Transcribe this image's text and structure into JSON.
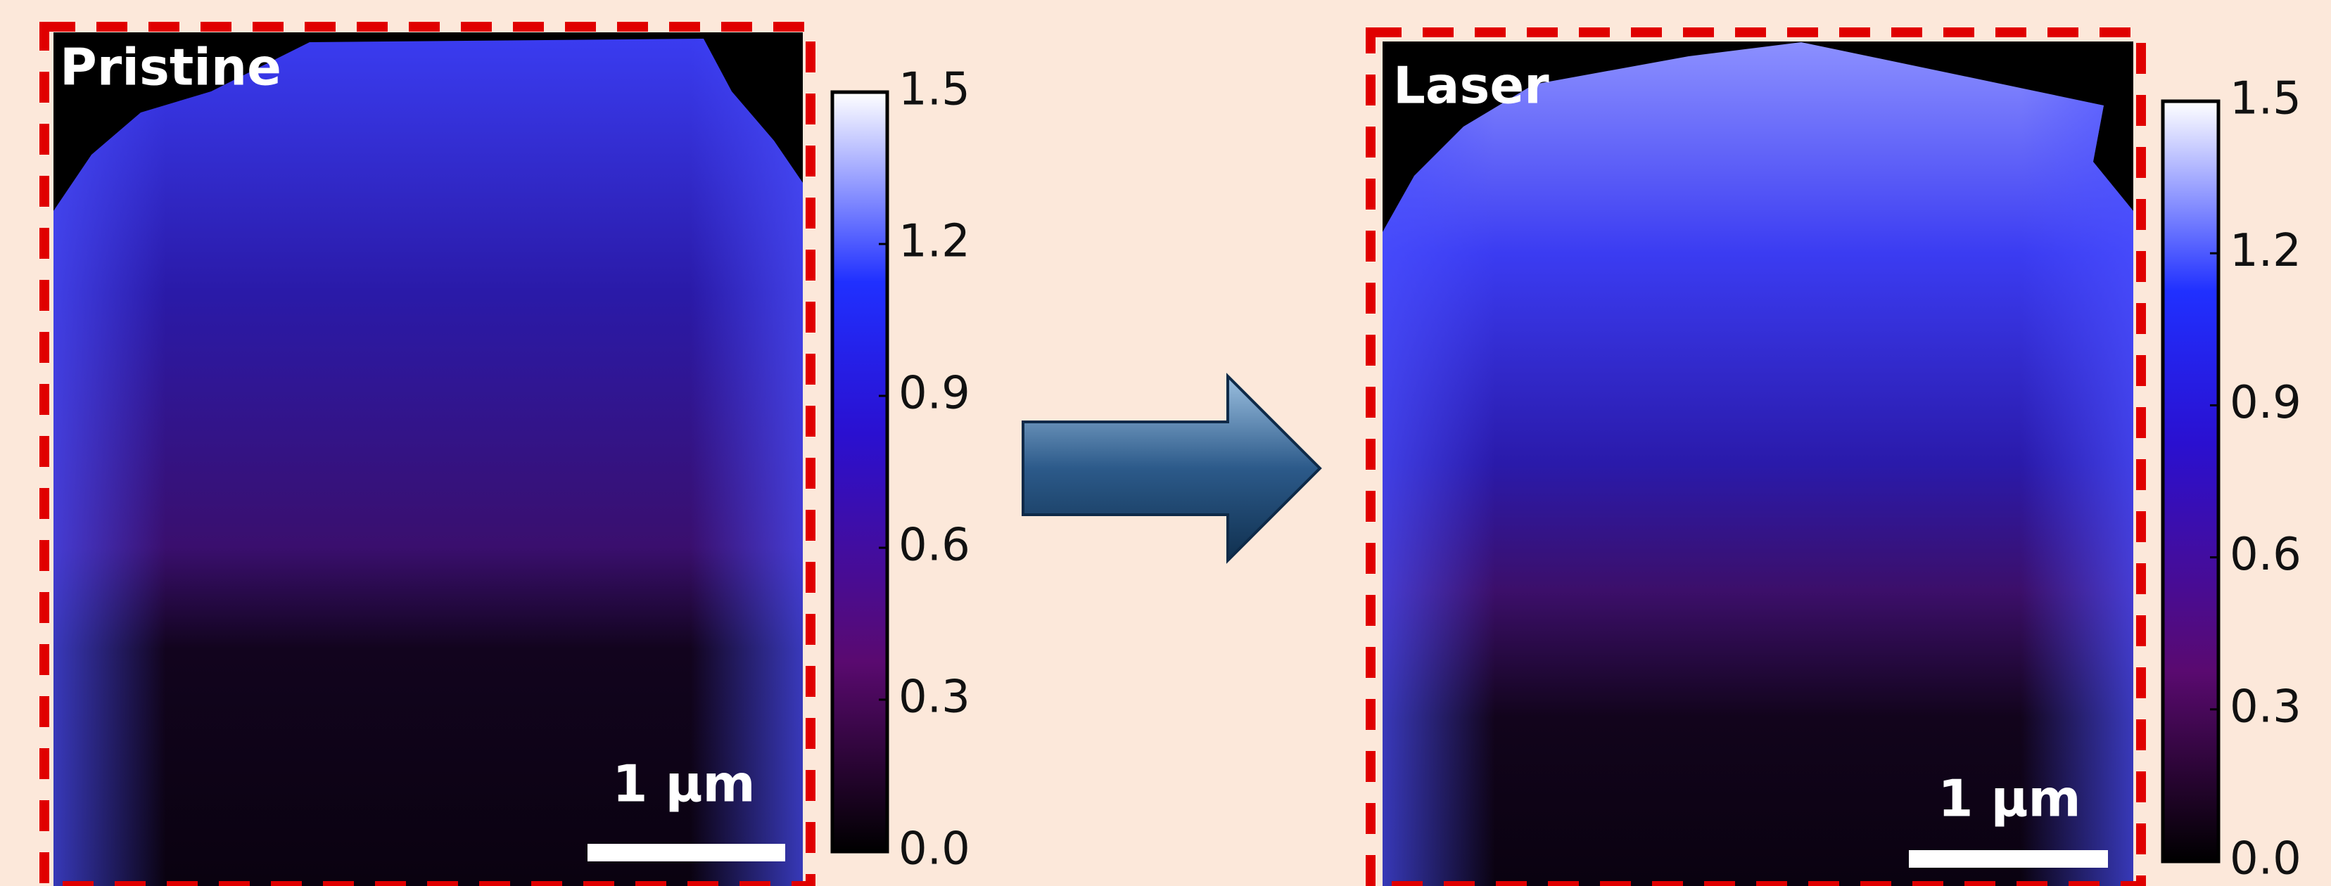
{
  "panels": [
    {
      "label": "Pristine",
      "scale_bar": "1 µm",
      "colorbar": {
        "ylim": [
          0,
          1.5
        ],
        "yticks": [
          {
            "value": 0,
            "label": "0.0"
          },
          0.3,
          0.6,
          0.9,
          1.2,
          1.5
        ]
      }
    },
    {
      "label": "Laser",
      "scale_bar": "1 µm",
      "colorbar": {
        "ylim": [
          0,
          1.5
        ],
        "yticks": [
          {
            "value": 0,
            "label": "0.0"
          },
          0.3,
          0.6,
          0.9,
          1.2,
          1.5
        ]
      }
    }
  ]
}
